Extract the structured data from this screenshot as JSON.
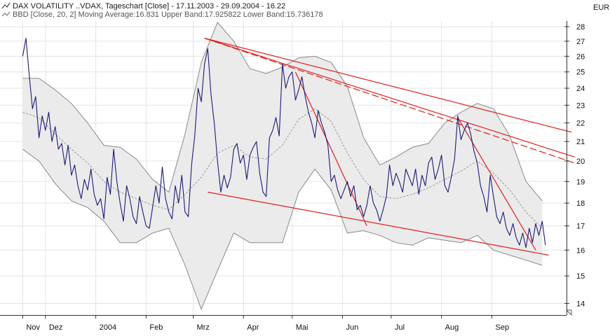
{
  "header": {
    "title_line": "DAX VOLATILITY   ..VDAX, Tageschart [Close] - 17.11.2003 - 29.09.2004 - 16.22",
    "indicator_line": "BBD [Close, 20, 2] Moving Average:16.831 Upper Band:17.925822 Lower Band:15.736178",
    "currency": "EUR"
  },
  "colors": {
    "price_line": "#1c1c78",
    "band_fill": "#ebebeb",
    "band_line": "#8a8a8a",
    "moving_average": "#9a9a9a",
    "trend_lines": "#e02020",
    "grid": "#e3e3e3",
    "axis": "#333333"
  },
  "chart_data": {
    "type": "line",
    "title": "DAX VOLATILITY ..VDAX, Tageschart [Close] - 17.11.2003 - 29.09.2004 - 16.22",
    "ylabel": "EUR",
    "ylim": [
      13.6,
      28.4
    ],
    "log_scale": true,
    "y_ticks": [
      14,
      15,
      16,
      17,
      18,
      19,
      20,
      21,
      22,
      23,
      24,
      25,
      26,
      27,
      28
    ],
    "x_month_labels": [
      {
        "label": "Nov",
        "day": 0
      },
      {
        "label": "Dez",
        "day": 14
      },
      {
        "label": "2004",
        "day": 45
      },
      {
        "label": "Feb",
        "day": 76
      },
      {
        "label": "Mrz",
        "day": 105
      },
      {
        "label": "Apr",
        "day": 136
      },
      {
        "label": "Mai",
        "day": 166
      },
      {
        "label": "Jun",
        "day": 197
      },
      {
        "label": "Jul",
        "day": 227
      },
      {
        "label": "Aug",
        "day": 258
      },
      {
        "label": "Sep",
        "day": 289
      }
    ],
    "x_range_days": [
      -14,
      335
    ],
    "series": [
      {
        "name": "VDAX Close",
        "points": [
          [
            0,
            26.0
          ],
          [
            2,
            27.2
          ],
          [
            4,
            24.8
          ],
          [
            6,
            22.8
          ],
          [
            8,
            23.5
          ],
          [
            10,
            21.2
          ],
          [
            12,
            22.4
          ],
          [
            14,
            21.6
          ],
          [
            16,
            22.6
          ],
          [
            18,
            21.0
          ],
          [
            20,
            21.8
          ],
          [
            22,
            20.6
          ],
          [
            24,
            20.9
          ],
          [
            26,
            19.8
          ],
          [
            28,
            20.8
          ],
          [
            30,
            19.3
          ],
          [
            32,
            19.8
          ],
          [
            34,
            18.8
          ],
          [
            36,
            18.2
          ],
          [
            38,
            19.1
          ],
          [
            40,
            18.6
          ],
          [
            42,
            19.6
          ],
          [
            44,
            18.4
          ],
          [
            46,
            17.9
          ],
          [
            48,
            18.2
          ],
          [
            50,
            17.3
          ],
          [
            52,
            19.2
          ],
          [
            54,
            18.4
          ],
          [
            56,
            20.6
          ],
          [
            58,
            19.0
          ],
          [
            60,
            18.0
          ],
          [
            62,
            17.2
          ],
          [
            64,
            18.8
          ],
          [
            66,
            18.2
          ],
          [
            68,
            17.4
          ],
          [
            70,
            17.1
          ],
          [
            72,
            18.3
          ],
          [
            74,
            17.6
          ],
          [
            76,
            17.0
          ],
          [
            78,
            16.9
          ],
          [
            80,
            17.8
          ],
          [
            82,
            18.8
          ],
          [
            84,
            18.0
          ],
          [
            86,
            19.7
          ],
          [
            88,
            18.2
          ],
          [
            90,
            17.6
          ],
          [
            92,
            17.3
          ],
          [
            94,
            18.8
          ],
          [
            96,
            18.0
          ],
          [
            98,
            19.3
          ],
          [
            100,
            17.6
          ],
          [
            102,
            17.4
          ],
          [
            104,
            19.8
          ],
          [
            106,
            21.3
          ],
          [
            108,
            24.0
          ],
          [
            110,
            23.2
          ],
          [
            112,
            25.5
          ],
          [
            114,
            26.5
          ],
          [
            116,
            23.6
          ],
          [
            118,
            22.0
          ],
          [
            120,
            20.0
          ],
          [
            122,
            18.5
          ],
          [
            124,
            19.3
          ],
          [
            126,
            18.7
          ],
          [
            128,
            19.2
          ],
          [
            130,
            20.6
          ],
          [
            132,
            20.9
          ],
          [
            134,
            19.9
          ],
          [
            136,
            20.3
          ],
          [
            138,
            19.1
          ],
          [
            140,
            20.3
          ],
          [
            142,
            20.7
          ],
          [
            144,
            21.0
          ],
          [
            146,
            19.4
          ],
          [
            148,
            18.5
          ],
          [
            150,
            18.3
          ],
          [
            152,
            21.2
          ],
          [
            154,
            21.6
          ],
          [
            156,
            22.3
          ],
          [
            158,
            21.3
          ],
          [
            160,
            25.5
          ],
          [
            162,
            24.0
          ],
          [
            164,
            24.7
          ],
          [
            166,
            25.0
          ],
          [
            168,
            23.3
          ],
          [
            170,
            23.9
          ],
          [
            172,
            24.7
          ],
          [
            174,
            23.5
          ],
          [
            176,
            22.6
          ],
          [
            178,
            22.0
          ],
          [
            180,
            21.2
          ],
          [
            182,
            22.7
          ],
          [
            184,
            22.0
          ],
          [
            186,
            21.5
          ],
          [
            188,
            20.8
          ],
          [
            190,
            19.0
          ],
          [
            192,
            19.3
          ],
          [
            194,
            18.6
          ],
          [
            196,
            18.2
          ],
          [
            198,
            18.6
          ],
          [
            200,
            19.0
          ],
          [
            202,
            18.3
          ],
          [
            204,
            18.8
          ],
          [
            206,
            17.7
          ],
          [
            208,
            17.9
          ],
          [
            210,
            17.4
          ],
          [
            212,
            17.9
          ],
          [
            214,
            18.8
          ],
          [
            216,
            18.0
          ],
          [
            218,
            17.7
          ],
          [
            220,
            17.2
          ],
          [
            222,
            17.7
          ],
          [
            224,
            18.3
          ],
          [
            226,
            19.8
          ],
          [
            228,
            18.8
          ],
          [
            230,
            19.4
          ],
          [
            232,
            19.0
          ],
          [
            234,
            18.5
          ],
          [
            236,
            19.6
          ],
          [
            238,
            19.2
          ],
          [
            240,
            18.8
          ],
          [
            242,
            19.6
          ],
          [
            244,
            18.4
          ],
          [
            246,
            19.3
          ],
          [
            248,
            18.8
          ],
          [
            250,
            19.9
          ],
          [
            252,
            20.2
          ],
          [
            254,
            19.1
          ],
          [
            256,
            19.6
          ],
          [
            258,
            20.3
          ],
          [
            260,
            18.8
          ],
          [
            262,
            18.5
          ],
          [
            264,
            19.2
          ],
          [
            266,
            20.1
          ],
          [
            268,
            22.4
          ],
          [
            270,
            21.1
          ],
          [
            272,
            21.6
          ],
          [
            274,
            22.0
          ],
          [
            276,
            21.4
          ],
          [
            278,
            20.5
          ],
          [
            280,
            19.9
          ],
          [
            282,
            18.8
          ],
          [
            284,
            18.3
          ],
          [
            286,
            17.6
          ],
          [
            288,
            19.3
          ],
          [
            290,
            18.3
          ],
          [
            292,
            17.4
          ],
          [
            294,
            17.1
          ],
          [
            296,
            17.6
          ],
          [
            298,
            16.9
          ],
          [
            300,
            16.6
          ],
          [
            302,
            17.1
          ],
          [
            304,
            16.5
          ],
          [
            306,
            16.2
          ],
          [
            308,
            16.7
          ],
          [
            310,
            16.1
          ],
          [
            312,
            16.9
          ],
          [
            314,
            16.3
          ],
          [
            316,
            17.1
          ],
          [
            318,
            16.6
          ],
          [
            320,
            17.2
          ],
          [
            322,
            16.2
          ]
        ]
      },
      {
        "name": "Moving Average",
        "points": [
          [
            0,
            22.6
          ],
          [
            10,
            22.3
          ],
          [
            20,
            21.4
          ],
          [
            30,
            20.6
          ],
          [
            40,
            19.9
          ],
          [
            50,
            19.0
          ],
          [
            60,
            18.5
          ],
          [
            70,
            18.2
          ],
          [
            80,
            17.9
          ],
          [
            90,
            17.7
          ],
          [
            100,
            18.4
          ],
          [
            110,
            19.2
          ],
          [
            120,
            20.4
          ],
          [
            130,
            20.8
          ],
          [
            140,
            20.2
          ],
          [
            150,
            20.1
          ],
          [
            160,
            20.8
          ],
          [
            170,
            22.2
          ],
          [
            180,
            22.8
          ],
          [
            190,
            22.1
          ],
          [
            200,
            20.4
          ],
          [
            210,
            19.1
          ],
          [
            220,
            18.3
          ],
          [
            230,
            18.2
          ],
          [
            240,
            18.4
          ],
          [
            250,
            18.7
          ],
          [
            260,
            19.1
          ],
          [
            270,
            19.5
          ],
          [
            280,
            20.0
          ],
          [
            290,
            19.4
          ],
          [
            300,
            18.6
          ],
          [
            310,
            17.6
          ],
          [
            320,
            16.9
          ]
        ]
      },
      {
        "name": "Upper Band",
        "points": [
          [
            0,
            24.6
          ],
          [
            10,
            24.6
          ],
          [
            20,
            23.9
          ],
          [
            30,
            23.1
          ],
          [
            40,
            22.0
          ],
          [
            50,
            20.8
          ],
          [
            60,
            20.7
          ],
          [
            70,
            20.1
          ],
          [
            80,
            19.1
          ],
          [
            90,
            18.5
          ],
          [
            100,
            21.4
          ],
          [
            110,
            25.6
          ],
          [
            120,
            28.3
          ],
          [
            130,
            27.0
          ],
          [
            140,
            25.2
          ],
          [
            150,
            24.9
          ],
          [
            160,
            25.3
          ],
          [
            170,
            25.9
          ],
          [
            180,
            26.0
          ],
          [
            190,
            25.6
          ],
          [
            200,
            24.1
          ],
          [
            210,
            21.2
          ],
          [
            220,
            19.8
          ],
          [
            230,
            20.2
          ],
          [
            240,
            20.7
          ],
          [
            250,
            20.9
          ],
          [
            260,
            22.0
          ],
          [
            270,
            22.6
          ],
          [
            280,
            23.1
          ],
          [
            290,
            22.8
          ],
          [
            300,
            21.3
          ],
          [
            310,
            19.0
          ],
          [
            320,
            18.1
          ]
        ]
      },
      {
        "name": "Lower Band",
        "points": [
          [
            0,
            20.6
          ],
          [
            10,
            20.0
          ],
          [
            20,
            18.9
          ],
          [
            30,
            18.1
          ],
          [
            40,
            17.8
          ],
          [
            50,
            17.2
          ],
          [
            60,
            16.3
          ],
          [
            70,
            16.3
          ],
          [
            80,
            16.7
          ],
          [
            90,
            16.9
          ],
          [
            100,
            15.4
          ],
          [
            110,
            13.8
          ],
          [
            120,
            15.2
          ],
          [
            130,
            16.7
          ],
          [
            140,
            16.3
          ],
          [
            150,
            16.3
          ],
          [
            160,
            16.3
          ],
          [
            170,
            18.5
          ],
          [
            180,
            19.6
          ],
          [
            190,
            18.6
          ],
          [
            200,
            16.7
          ],
          [
            210,
            16.8
          ],
          [
            220,
            16.6
          ],
          [
            230,
            16.3
          ],
          [
            240,
            16.2
          ],
          [
            250,
            16.5
          ],
          [
            260,
            16.4
          ],
          [
            270,
            16.3
          ],
          [
            280,
            16.6
          ],
          [
            290,
            16.0
          ],
          [
            300,
            15.8
          ],
          [
            310,
            15.6
          ],
          [
            320,
            15.4
          ]
        ]
      }
    ],
    "trend_lines": [
      {
        "from": [
          112,
          27.2
        ],
        "to": [
          338,
          21.5
        ],
        "style": "solid"
      },
      {
        "from": [
          112,
          27.2
        ],
        "to": [
          340,
          20.2
        ],
        "style": "solid"
      },
      {
        "from": [
          112,
          27.2
        ],
        "to": [
          340,
          19.9
        ],
        "style": "dashed"
      },
      {
        "from": [
          114,
          18.5
        ],
        "to": [
          324,
          15.8
        ],
        "style": "solid"
      },
      {
        "from": [
          168,
          25.0
        ],
        "to": [
          212,
          17.0
        ],
        "style": "solid"
      },
      {
        "from": [
          268,
          22.3
        ],
        "to": [
          316,
          16.0
        ],
        "style": "solid"
      }
    ],
    "grid": true,
    "legend": "none"
  }
}
